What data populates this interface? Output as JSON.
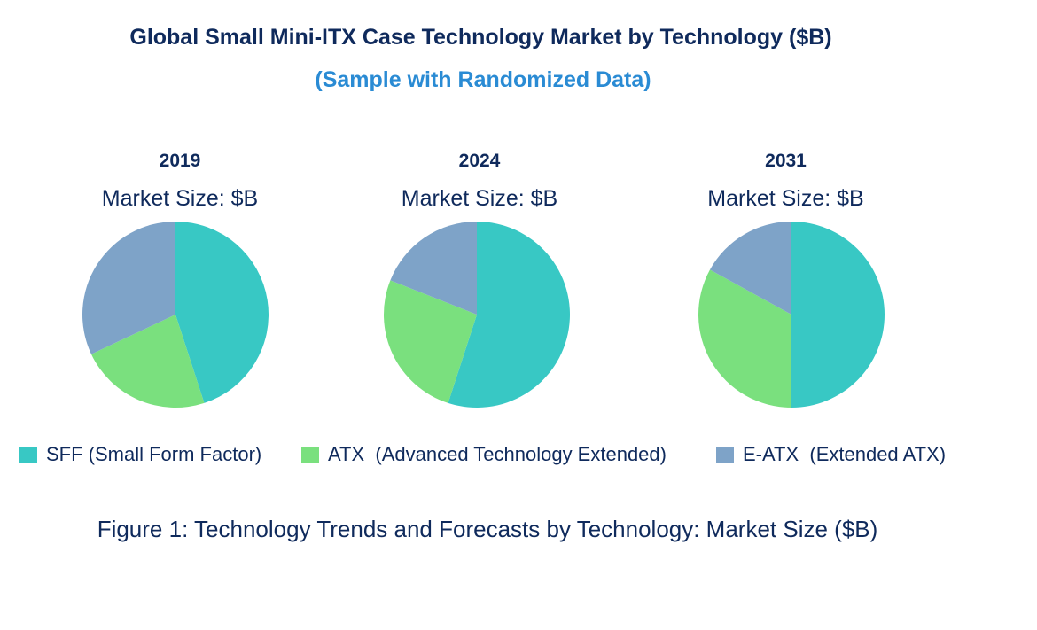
{
  "title": "Global Small Mini-ITX Case Technology Market by Technology ($B)",
  "subtitle": "(Sample with Randomized Data)",
  "caption": "Figure 1: Technology Trends and Forecasts by Technology: Market Size ($B)",
  "colors": {
    "sff": "#38c8c4",
    "atx": "#7ae07e",
    "eatx": "#7ea3c8"
  },
  "legend": [
    {
      "label": "SFF (Small Form Factor)",
      "color": "#38c8c4"
    },
    {
      "label": "ATX  (Advanced Technology Extended)",
      "color": "#7ae07e"
    },
    {
      "label": "E-ATX  (Extended ATX)",
      "color": "#7ea3c8"
    }
  ],
  "panels": [
    {
      "year": "2019",
      "market_size": "Market Size: $B"
    },
    {
      "year": "2024",
      "market_size": "Market Size: $B"
    },
    {
      "year": "2031",
      "market_size": "Market Size: $B"
    }
  ],
  "chart_data": {
    "type": "pie",
    "title": "Global Small Mini-ITX Case Technology Market by Technology ($B)",
    "categories": [
      "SFF (Small Form Factor)",
      "ATX  (Advanced Technology Extended)",
      "E-ATX  (Extended ATX)"
    ],
    "series": [
      {
        "name": "2019",
        "values": [
          45,
          23,
          32
        ]
      },
      {
        "name": "2024",
        "values": [
          55,
          26,
          19
        ]
      },
      {
        "name": "2031",
        "values": [
          50,
          33,
          17
        ]
      }
    ],
    "legend": "bottom"
  }
}
